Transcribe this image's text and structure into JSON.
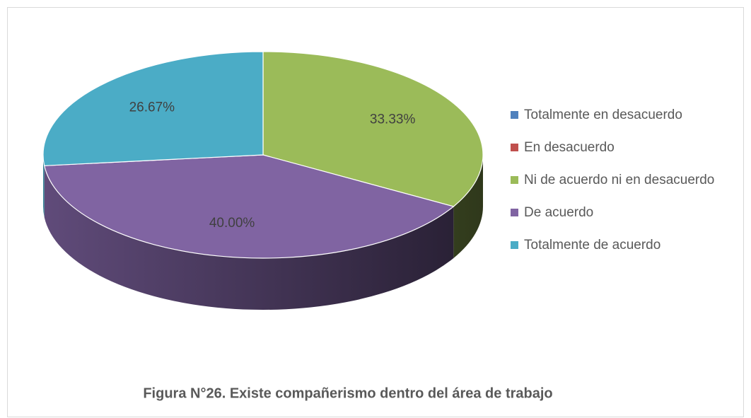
{
  "chart_data": {
    "type": "pie3d",
    "title": "Figura N°26. Existe compañerismo dentro del área de trabajo",
    "categories": [
      "Totalmente en desacuerdo",
      "En desacuerdo",
      "Ni de acuerdo ni en desacuerdo",
      "De acuerdo",
      "Totalmente de acuerdo"
    ],
    "values": [
      0,
      0,
      33.33,
      40.0,
      26.67
    ],
    "value_labels": [
      null,
      null,
      "33.33%",
      "40.00%",
      "26.67%"
    ],
    "colors": [
      "#4f81bd",
      "#c0504d",
      "#9bbb59",
      "#8064a2",
      "#4bacc6"
    ],
    "legend": "right"
  }
}
